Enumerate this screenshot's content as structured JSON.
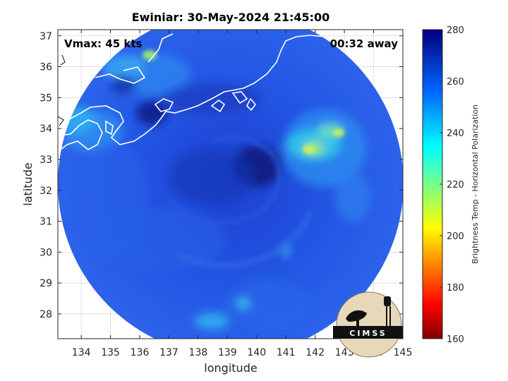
{
  "chart_data": {
    "type": "heatmap",
    "title": "Ewiniar: 30-May-2024 21:45:00",
    "xlabel": "longitude",
    "ylabel": "latitude",
    "xlim": [
      133.2,
      145
    ],
    "ylim": [
      27.2,
      37.2
    ],
    "x_ticks": [
      "134",
      "135",
      "136",
      "137",
      "138",
      "139",
      "140",
      "141",
      "142",
      "143",
      "144",
      "145"
    ],
    "y_ticks": [
      "37",
      "36",
      "35",
      "34",
      "33",
      "32",
      "31",
      "30",
      "29",
      "28"
    ],
    "grid": true,
    "storm_center": {
      "lon": 139.3,
      "lat": 32.5
    },
    "annotations": {
      "vmax": "Vmax: 45 kts",
      "time_away": "00:32 away"
    },
    "colorbar": {
      "label": "Brightness Temp - Horizontal Polarization",
      "range": [
        160,
        280
      ],
      "ticks": [
        "280",
        "260",
        "240",
        "220",
        "200",
        "180",
        "160"
      ],
      "colormap": "jet (reversed: high=dark blue, low=dark red)"
    },
    "features": [
      {
        "name": "warm region",
        "lon": 142.7,
        "lat": 33.6,
        "value": 238
      },
      {
        "name": "warm region",
        "lon": 141.7,
        "lat": 33.0,
        "value": 236
      },
      {
        "name": "coastline area",
        "lon": 134.3,
        "lat": 34.0,
        "value": 245
      },
      {
        "name": "eye",
        "lon": 139.6,
        "lat": 32.8,
        "value": 268
      }
    ],
    "logo_text": "CIMSS"
  },
  "colors": {
    "background_field": "#1f4fe0",
    "dark_blue": "#0a1e8c",
    "cyan": "#19c8f0",
    "yellow_green": "#b4ee46"
  }
}
